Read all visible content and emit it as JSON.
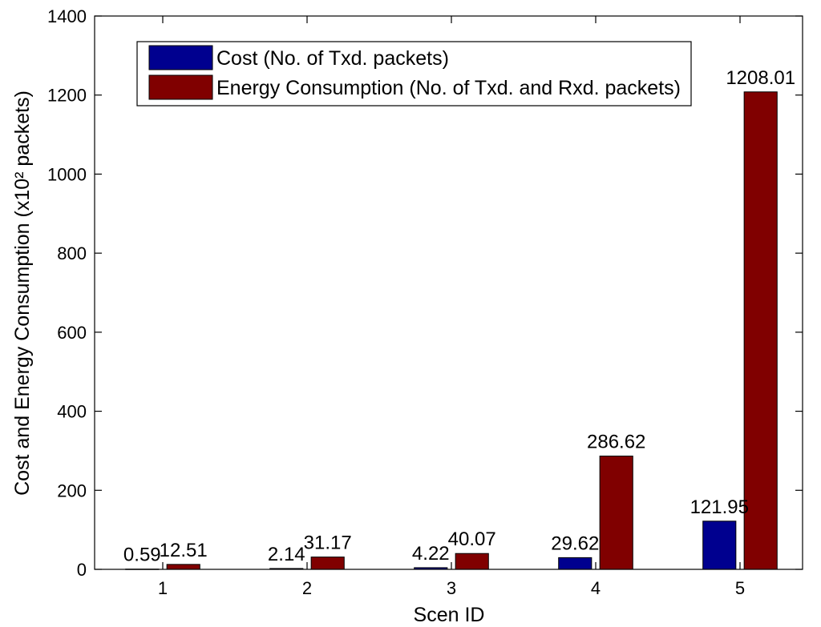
{
  "chart_data": {
    "type": "bar",
    "xlabel": "Scen ID",
    "ylabel": "Cost and Energy Consumption (x10² packets)",
    "categories": [
      "1",
      "2",
      "3",
      "4",
      "5"
    ],
    "series": [
      {
        "name": "Cost (No. of Txd. packets)",
        "color": "#00008f",
        "values": [
          0.59,
          2.14,
          4.22,
          29.62,
          121.95
        ]
      },
      {
        "name": "Energy Consumption (No. of Txd. and Rxd. packets)",
        "color": "#800000",
        "values": [
          12.51,
          31.17,
          40.07,
          286.62,
          1208.01
        ]
      }
    ],
    "xlim": [
      0.5,
      5.5
    ],
    "ylim": [
      0,
      1400
    ],
    "yticks": [
      0,
      200,
      400,
      600,
      800,
      1000,
      1200,
      1400
    ],
    "grid": false,
    "legend_position": "top-left"
  }
}
